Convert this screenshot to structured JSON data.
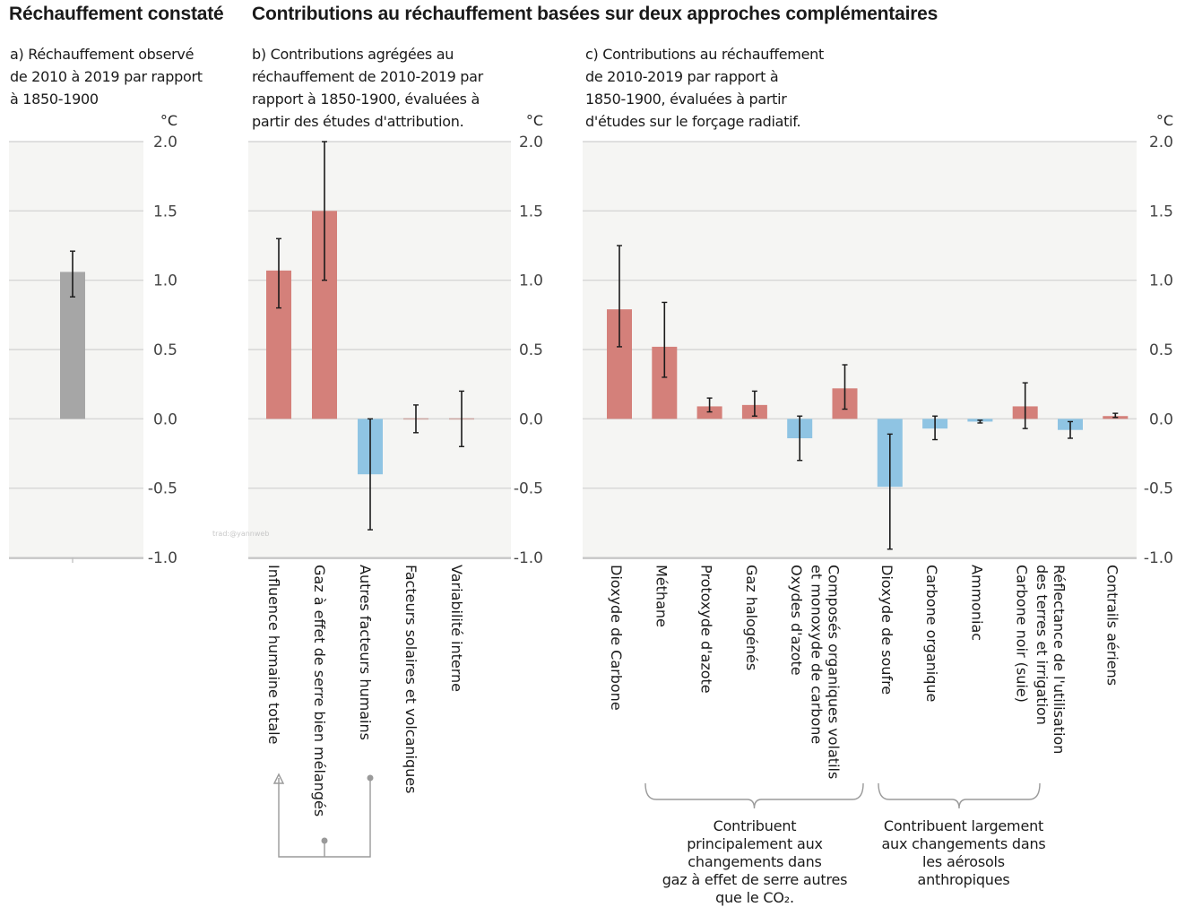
{
  "headings": {
    "left": "Réchauffement constaté",
    "right": "Contributions au réchauffement basées sur deux approches complémentaires"
  },
  "colors": {
    "warming": "#d4807a",
    "cooling": "#8fc4e3",
    "observed": "#a6a6a6",
    "panel_bg": "#f5f5f3",
    "grid": "#d6d6d6",
    "error_bar": "#1a1a1a"
  },
  "chart_data": [
    {
      "type": "bar",
      "panel": "a",
      "subtitle": "a) Réchauffement observé\nde 2010 à 2019 par rapport\nà 1850-1900",
      "unit": "°C",
      "ylim": [
        -1.0,
        2.0
      ],
      "yticks": [
        "2.0",
        "1.5",
        "1.0",
        "0.5",
        "0.0",
        "-0.5",
        "-1.0"
      ],
      "grid": true,
      "categories": [
        ""
      ],
      "values": [
        1.06
      ],
      "error_low": [
        0.88
      ],
      "error_high": [
        1.21
      ],
      "sign": [
        "observed"
      ]
    },
    {
      "type": "bar",
      "panel": "b",
      "subtitle": "b) Contributions agrégées au\nréchauffement de 2010-2019 par\nrapport à 1850-1900, évaluées à\npartir des études d'attribution.",
      "unit": "°C",
      "ylim": [
        -1.0,
        2.0
      ],
      "yticks": [
        "2.0",
        "1.5",
        "1.0",
        "0.5",
        "0.0",
        "-0.5",
        "-1.0"
      ],
      "grid": true,
      "categories": [
        "Influence humaine totale",
        "Gaz à effet de serre bien mélangés",
        "Autres facteurs humains",
        "Facteurs solaires et volcaniques",
        "Variabilité interne"
      ],
      "values": [
        1.07,
        1.5,
        -0.4,
        0.0,
        0.0
      ],
      "error_low": [
        0.8,
        1.0,
        -0.8,
        -0.1,
        -0.2
      ],
      "error_high": [
        1.3,
        2.0,
        0.0,
        0.1,
        0.2
      ],
      "sign": [
        "warming",
        "warming",
        "cooling",
        "neutral",
        "neutral"
      ],
      "watermark": "trad:@yannweb"
    },
    {
      "type": "bar",
      "panel": "c",
      "subtitle": "c) Contributions au réchauffement\nde 2010-2019 par rapport à\n1850-1900, évaluées à partir\nd'études sur le forçage radiatif.",
      "unit": "°C",
      "ylim": [
        -1.0,
        2.0
      ],
      "yticks": [
        "2.0",
        "1.5",
        "1.0",
        "0.5",
        "0.0",
        "-0.5",
        "-1.0"
      ],
      "grid": true,
      "categories": [
        "Dioxyde de Carbone",
        "Méthane",
        "Protoxyde d'azote",
        "Gaz halogénés",
        "Oxydes d'azote",
        "Composés organiques volatils et monoxyde de carbone",
        "Dioxyde de soufre",
        "Carbone organique",
        "Ammoniac",
        "Carbone noir (suie)",
        "Réflectance de l'utilisation des terres et irrigation",
        "Contrails aériens"
      ],
      "values": [
        0.79,
        0.52,
        0.09,
        0.1,
        -0.14,
        0.22,
        -0.49,
        -0.07,
        -0.02,
        0.09,
        -0.08,
        0.02
      ],
      "error_low": [
        0.52,
        0.3,
        0.05,
        0.02,
        -0.3,
        0.07,
        -0.94,
        -0.15,
        -0.03,
        -0.07,
        -0.14,
        0.01
      ],
      "error_high": [
        1.25,
        0.84,
        0.15,
        0.2,
        0.02,
        0.39,
        -0.11,
        0.02,
        -0.01,
        0.26,
        -0.02,
        0.04
      ],
      "sign": [
        "warming",
        "warming",
        "warming",
        "warming",
        "cooling",
        "warming",
        "cooling",
        "cooling",
        "cooling",
        "warming",
        "cooling",
        "warming"
      ]
    }
  ],
  "notes": {
    "ghg_other": "Contribuent\nprincipalement aux\nchangements dans\ngaz à effet de serre autres\nque le CO₂.",
    "aerosols": "Contribuent largement\naux changements dans\nles aérosols\nanthropiques"
  }
}
